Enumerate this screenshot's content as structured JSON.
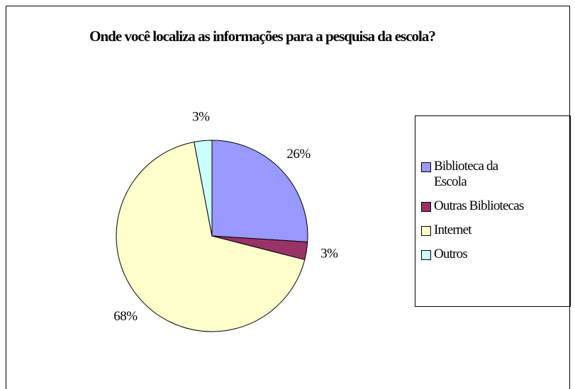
{
  "chart_data": {
    "type": "pie",
    "title": "Onde você localiza as informações para a pesquisa da escola?",
    "categories": [
      "Biblioteca da Escola",
      "Outras Bibliotecas",
      "Internet",
      "Outros"
    ],
    "values": [
      26,
      3,
      68,
      3
    ],
    "value_labels": [
      "26%",
      "3%",
      "68%",
      "3%"
    ],
    "colors": [
      "#9999ff",
      "#993366",
      "#ffffcc",
      "#ccffff"
    ],
    "legend": "right"
  }
}
